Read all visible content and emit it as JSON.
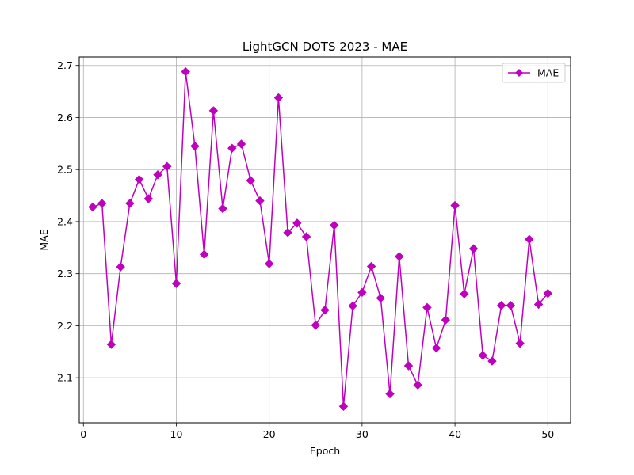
{
  "chart_data": {
    "type": "line",
    "title": "LightGCN DOTS 2023 - MAE",
    "xlabel": "Epoch",
    "ylabel": "MAE",
    "xlim": [
      -0.45,
      52.45
    ],
    "ylim": [
      2.0135,
      2.7163
    ],
    "xticks": [
      0,
      10,
      20,
      30,
      40,
      50
    ],
    "yticks": [
      2.1,
      2.2,
      2.3,
      2.4,
      2.5,
      2.6,
      2.7
    ],
    "xtick_labels": [
      "0",
      "10",
      "20",
      "30",
      "40",
      "50"
    ],
    "ytick_labels": [
      "2.1",
      "2.2",
      "2.3",
      "2.4",
      "2.5",
      "2.6",
      "2.7"
    ],
    "grid": true,
    "legend_position": "upper right",
    "series": [
      {
        "name": "MAE",
        "color": "#bf00bf",
        "marker": "diamond",
        "x": [
          1,
          2,
          3,
          4,
          5,
          6,
          7,
          8,
          9,
          10,
          11,
          12,
          13,
          14,
          15,
          16,
          17,
          18,
          19,
          20,
          21,
          22,
          23,
          24,
          25,
          26,
          27,
          28,
          29,
          30,
          31,
          32,
          33,
          34,
          35,
          36,
          37,
          38,
          39,
          40,
          41,
          42,
          43,
          44,
          45,
          46,
          47,
          48,
          49,
          50
        ],
        "values": [
          2.428,
          2.435,
          2.164,
          2.313,
          2.435,
          2.481,
          2.444,
          2.49,
          2.506,
          2.281,
          2.688,
          2.545,
          2.337,
          2.613,
          2.425,
          2.541,
          2.549,
          2.479,
          2.44,
          2.319,
          2.638,
          2.379,
          2.397,
          2.371,
          2.201,
          2.23,
          2.393,
          2.045,
          2.238,
          2.264,
          2.314,
          2.253,
          2.069,
          2.333,
          2.123,
          2.086,
          2.235,
          2.157,
          2.211,
          2.431,
          2.261,
          2.348,
          2.143,
          2.132,
          2.239,
          2.239,
          2.166,
          2.366,
          2.241,
          2.262
        ]
      }
    ]
  }
}
